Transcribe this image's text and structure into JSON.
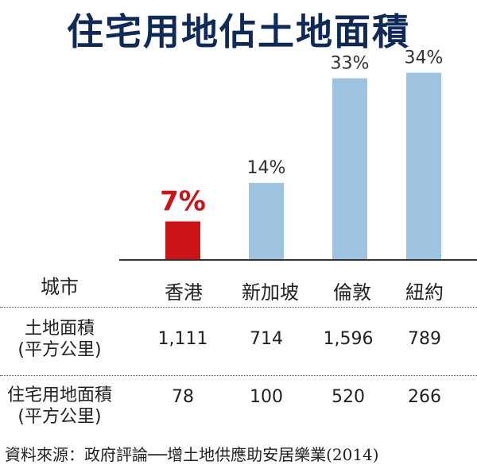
{
  "title": "住宅用地佔土地面積",
  "chart_data": {
    "type": "bar",
    "categories": [
      "香港",
      "新加坡",
      "倫敦",
      "紐約"
    ],
    "values": [
      7,
      14,
      33,
      34
    ],
    "value_labels": [
      "7%",
      "14%",
      "33%",
      "34%"
    ],
    "ylim": [
      0,
      40
    ],
    "colors": [
      "#cc1318",
      "#9ec3e0",
      "#9ec3e0",
      "#9ec3e0"
    ],
    "label_colors": [
      "#cc1318",
      "#333333",
      "#333333",
      "#333333"
    ],
    "grid": false
  },
  "table": {
    "header": {
      "label": "城市",
      "cols": [
        "香港",
        "新加坡",
        "倫敦",
        "紐約"
      ]
    },
    "rows": [
      {
        "label_line1": "土地面積",
        "label_line2": "(平方公里)",
        "values": [
          "1,111",
          "714",
          "1,596",
          "789"
        ]
      },
      {
        "label_line1": "住宅用地面積",
        "label_line2": "(平方公里)",
        "values": [
          "78",
          "100",
          "520",
          "266"
        ]
      }
    ]
  },
  "source": "資料來源：政府評論──增土地供應助安居樂業(2014)"
}
